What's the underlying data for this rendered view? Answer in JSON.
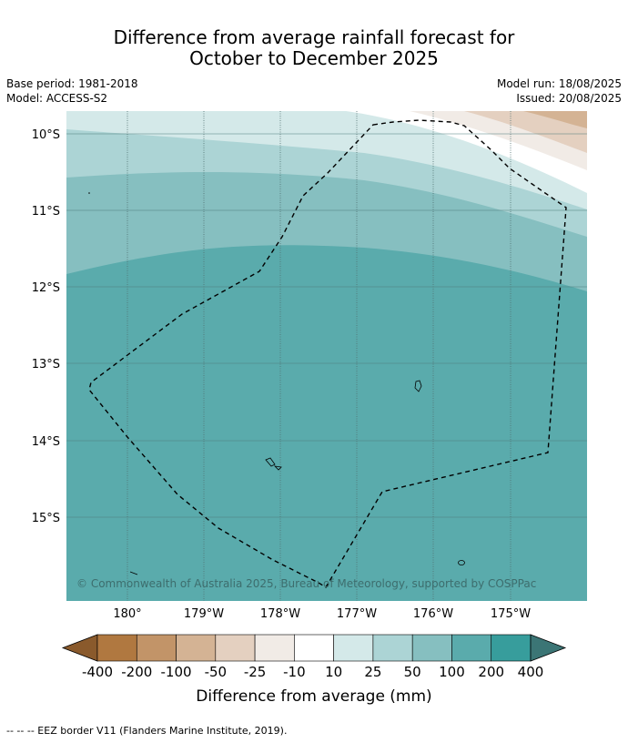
{
  "title": {
    "line1": "Difference from average rainfall forecast for",
    "line2": "October to December 2025"
  },
  "meta": {
    "base_period": "Base period: 1981-2018",
    "model": "Model: ACCESS-S2",
    "model_run": "Model run: 18/08/2025",
    "issued": "Issued: 20/08/2025"
  },
  "map": {
    "lat_labels": [
      "10°S",
      "11°S",
      "12°S",
      "13°S",
      "14°S",
      "15°S"
    ],
    "lon_labels": [
      "180°",
      "179°W",
      "178°W",
      "177°W",
      "176°W",
      "175°W"
    ],
    "copyright": "© Commonwealth of Australia 2025, Bureau of Meteorology, supported by COSPPac"
  },
  "colorbar": {
    "label": "Difference from average (mm)",
    "ticks": [
      "-400",
      "-200",
      "-100",
      "-50",
      "-25",
      "-10",
      "10",
      "25",
      "50",
      "100",
      "200",
      "400"
    ],
    "colors": [
      "#8a5a2c",
      "#b07840",
      "#c29468",
      "#d4b394",
      "#e4d0c0",
      "#f1ebe6",
      "#ffffff",
      "#d4e9e9",
      "#acd4d5",
      "#86bfc0",
      "#5aabac",
      "#379d9c",
      "#3b7575"
    ]
  },
  "footer": {
    "legend": "--  --  -- EEZ border V11 (Flanders Marine Institute, 2019)."
  }
}
